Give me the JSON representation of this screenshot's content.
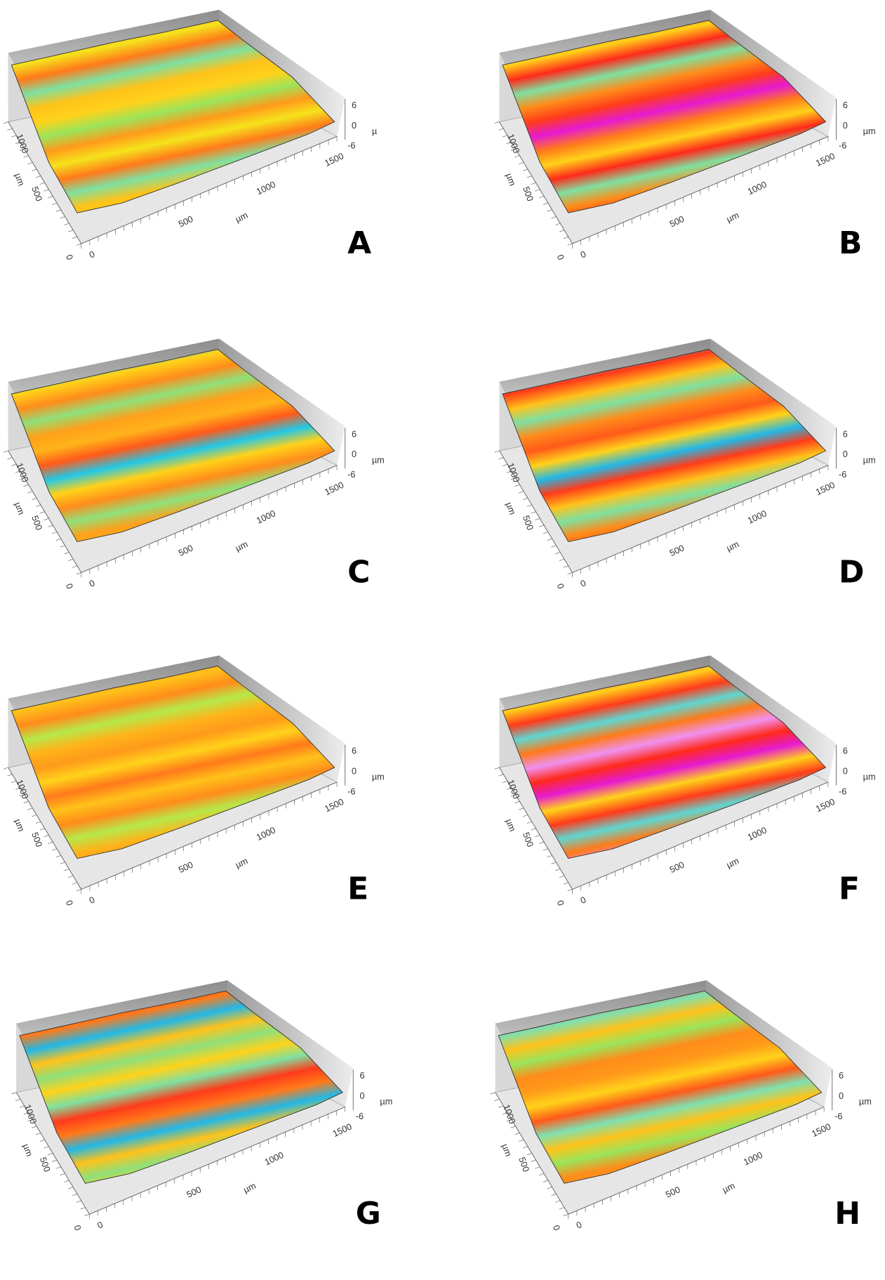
{
  "panels": [
    {
      "label": "A",
      "x_ticks": [
        "0",
        "500",
        "1000",
        "1500"
      ],
      "x_unit": "µm",
      "y_ticks": [
        "0",
        "500",
        "1000"
      ],
      "y_unit": "µm",
      "z_ticks": [
        "6",
        "0",
        "-6"
      ],
      "z_unit": "µ"
    },
    {
      "label": "B",
      "x_ticks": [
        "0",
        "500",
        "1000",
        "1500"
      ],
      "x_unit": "µm",
      "y_ticks": [
        "0",
        "500",
        "1000"
      ],
      "y_unit": "µm",
      "z_ticks": [
        "6",
        "0",
        "-6"
      ],
      "z_unit": "µm"
    },
    {
      "label": "C",
      "x_ticks": [
        "0",
        "500",
        "1000",
        "1500"
      ],
      "x_unit": "µm",
      "y_ticks": [
        "0",
        "500",
        "1000"
      ],
      "y_unit": "µm",
      "z_ticks": [
        "6",
        "0",
        "-6"
      ],
      "z_unit": "µm"
    },
    {
      "label": "D",
      "x_ticks": [
        "0",
        "500",
        "1000",
        "1500"
      ],
      "x_unit": "µm",
      "y_ticks": [
        "0",
        "500",
        "1000"
      ],
      "y_unit": "µm",
      "z_ticks": [
        "6",
        "0",
        "-6"
      ],
      "z_unit": "µm"
    },
    {
      "label": "E",
      "x_ticks": [
        "0",
        "500",
        "1000",
        "1500"
      ],
      "x_unit": "µm",
      "y_ticks": [
        "0",
        "500",
        "1000"
      ],
      "y_unit": "µm",
      "z_ticks": [
        "6",
        "0",
        "-6"
      ],
      "z_unit": "µm"
    },
    {
      "label": "F",
      "x_ticks": [
        "0",
        "500",
        "1000",
        "1500"
      ],
      "x_unit": "µm",
      "y_ticks": [
        "0",
        "500",
        "1000"
      ],
      "y_unit": "µm",
      "z_ticks": [
        "6",
        "0",
        "-6"
      ],
      "z_unit": "µm"
    },
    {
      "label": "G",
      "x_ticks": [
        "0",
        "500",
        "1000",
        "1500"
      ],
      "x_unit": "µm",
      "y_ticks": [
        "0",
        "500",
        "1000"
      ],
      "y_unit": "µm",
      "z_ticks": [
        "6",
        "0",
        "-6"
      ],
      "z_unit": "µm"
    },
    {
      "label": "H",
      "x_ticks": [
        "0",
        "500",
        "1000",
        "1500"
      ],
      "x_unit": "µm",
      "y_ticks": [
        "0",
        "500",
        "1000"
      ],
      "y_unit": "µm",
      "z_ticks": [
        "6",
        "0",
        "-6"
      ],
      "z_unit": "µm"
    }
  ]
}
